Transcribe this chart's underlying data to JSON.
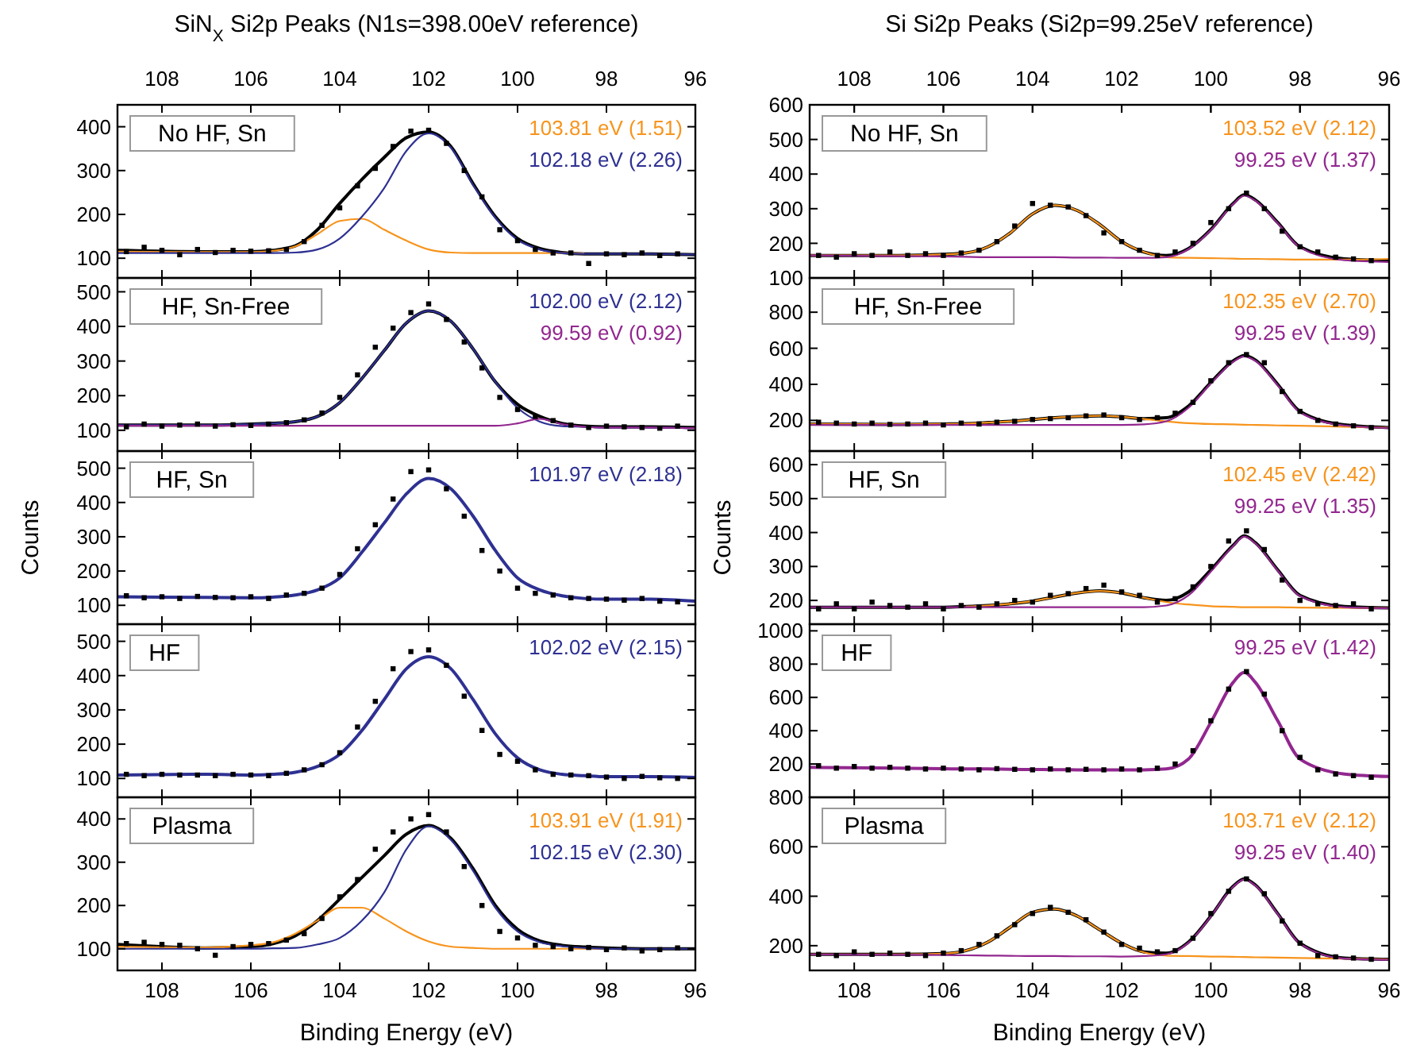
{
  "chart_data": [
    {
      "type": "line",
      "title": "SiN$_{X}$ Si2p Peaks (N1s=398.00eV reference)",
      "x": [
        109,
        107,
        106,
        105.5,
        105,
        104.5,
        104,
        103.5,
        103,
        102.5,
        102,
        101.5,
        101,
        100.5,
        100,
        99.5,
        99,
        98.5,
        98,
        97,
        96
      ],
      "xlim": [
        109,
        96
      ],
      "xticks": [
        108,
        106,
        104,
        102,
        100,
        98,
        96
      ],
      "x2lim": [
        109,
        96
      ],
      "x2ticks": [
        108,
        106,
        104,
        102,
        100,
        98,
        96
      ],
      "ylim": [
        55,
        450
      ],
      "yticks": [
        100,
        200,
        300,
        400
      ],
      "tick_labels": "y",
      "legend": "top right",
      "annotations": [
        "No HF, Sn"
      ],
      "series": [
        {
          "type": "scatter",
          "color": "#000000",
          "marker": "square",
          "x": [
            108.8,
            108.4,
            108.0,
            107.6,
            107.2,
            106.8,
            106.4,
            106.0,
            105.6,
            105.2,
            104.8,
            104.4,
            104.0,
            103.6,
            103.2,
            102.8,
            102.4,
            102.0,
            101.6,
            101.2,
            100.8,
            100.4,
            100.0,
            99.6,
            99.2,
            98.8,
            98.4,
            98.0,
            97.6,
            97.2,
            96.8,
            96.4
          ],
          "values": [
            115,
            125,
            118,
            108,
            120,
            113,
            118,
            116,
            117,
            120,
            138,
            175,
            215,
            265,
            305,
            355,
            390,
            392,
            362,
            300,
            240,
            165,
            140,
            120,
            112,
            112,
            88,
            110,
            108,
            112,
            106,
            110
          ]
        },
        {
          "type": "line",
          "color": "#000000",
          "values": [
            118,
            115,
            115,
            118,
            128,
            165,
            225,
            280,
            330,
            375,
            388,
            355,
            270,
            195,
            145,
            122,
            113,
            110,
            110,
            110,
            108
          ]
        },
        {
          "type": "line",
          "name": "103.81 eV (1.51)",
          "color": "#f7941d",
          "values": [
            115,
            114,
            114,
            117,
            127,
            155,
            185,
            190,
            165,
            140,
            120,
            113,
            112,
            112,
            112,
            112,
            112,
            111,
            null,
            null,
            null
          ]
        },
        {
          "type": "line",
          "name": "102.18 eV (2.26)",
          "color": "#2e3192",
          "values": [
            112,
            112,
            112,
            112,
            113,
            120,
            145,
            195,
            260,
            345,
            385,
            352,
            267,
            192,
            142,
            120,
            112,
            110,
            110,
            110,
            108
          ]
        }
      ]
    },
    {
      "type": "line",
      "x": [
        109,
        107,
        106,
        105.5,
        105,
        104.5,
        104,
        103.5,
        103,
        102.5,
        102,
        101.5,
        101,
        100.5,
        100,
        99.5,
        99,
        98.5,
        98,
        97,
        96
      ],
      "xlim": [
        109,
        96
      ],
      "xticks": [
        108,
        106,
        104,
        102,
        100,
        98,
        96
      ],
      "ylim": [
        40,
        540
      ],
      "yticks": [
        100,
        200,
        300,
        400,
        500
      ],
      "tick_labels": "y",
      "legend": "top right",
      "annotations": [
        "HF, Sn-Free"
      ],
      "series": [
        {
          "type": "scatter",
          "color": "#000000",
          "marker": "square",
          "x": [
            108.8,
            108.4,
            108.0,
            107.6,
            107.2,
            106.8,
            106.4,
            106.0,
            105.6,
            105.2,
            104.8,
            104.4,
            104.0,
            103.6,
            103.2,
            102.8,
            102.4,
            102.0,
            101.6,
            101.2,
            100.8,
            100.4,
            100.0,
            99.6,
            99.2,
            98.8,
            98.4,
            98.0,
            97.6,
            97.2,
            96.8,
            96.4
          ],
          "values": [
            110,
            118,
            112,
            115,
            118,
            112,
            116,
            114,
            118,
            122,
            130,
            150,
            195,
            260,
            340,
            395,
            440,
            465,
            420,
            355,
            280,
            195,
            160,
            140,
            128,
            115,
            108,
            112,
            110,
            108,
            106,
            112
          ]
        },
        {
          "type": "line",
          "color": "#000000",
          "values": [
            115,
            115,
            118,
            120,
            125,
            140,
            180,
            250,
            330,
            410,
            445,
            415,
            335,
            240,
            175,
            140,
            120,
            112,
            110,
            110,
            108
          ]
        },
        {
          "type": "line",
          "name": "102.00 eV (2.12)",
          "color": "#2e3192",
          "values": [
            115,
            115,
            118,
            120,
            125,
            140,
            180,
            250,
            330,
            410,
            445,
            415,
            335,
            240,
            165,
            125,
            112,
            110,
            108,
            108,
            106
          ]
        },
        {
          "type": "line",
          "name": "99.59 eV (0.92)",
          "color": "#92278f",
          "values": [
            113,
            113,
            113,
            113,
            113,
            113,
            113,
            113,
            113,
            113,
            113,
            113,
            113,
            113,
            120,
            133,
            118,
            110,
            108,
            108,
            106
          ]
        }
      ]
    },
    {
      "type": "line",
      "ylabel": "Counts",
      "x": [
        109,
        107,
        106,
        105.5,
        105,
        104.5,
        104,
        103.5,
        103,
        102.5,
        102,
        101.5,
        101,
        100.5,
        100,
        99.5,
        99,
        98.5,
        98,
        97,
        96
      ],
      "xlim": [
        109,
        96
      ],
      "xticks": [
        108,
        106,
        104,
        102,
        100,
        98,
        96
      ],
      "ylim": [
        45,
        550
      ],
      "yticks": [
        100,
        200,
        300,
        400,
        500
      ],
      "tick_labels": "y",
      "legend": "top right",
      "annotations": [
        "HF, Sn"
      ],
      "series": [
        {
          "type": "scatter",
          "color": "#000000",
          "marker": "square",
          "x": [
            108.8,
            108.4,
            108.0,
            107.6,
            107.2,
            106.8,
            106.4,
            106.0,
            105.6,
            105.2,
            104.8,
            104.4,
            104.0,
            103.6,
            103.2,
            102.8,
            102.4,
            102.0,
            101.6,
            101.2,
            100.8,
            100.4,
            100.0,
            99.6,
            99.2,
            98.8,
            98.4,
            98.0,
            97.6,
            97.2,
            96.8,
            96.4
          ],
          "values": [
            128,
            122,
            125,
            120,
            126,
            123,
            122,
            125,
            120,
            130,
            135,
            150,
            190,
            265,
            335,
            410,
            490,
            495,
            440,
            360,
            260,
            200,
            150,
            135,
            130,
            122,
            120,
            118,
            115,
            120,
            112,
            110
          ]
        },
        {
          "type": "line",
          "name": "101.97 eV (2.18)",
          "color": "#2e3192",
          "values": [
            125,
            123,
            122,
            124,
            130,
            145,
            180,
            255,
            340,
            425,
            470,
            440,
            360,
            260,
            180,
            145,
            128,
            120,
            118,
            118,
            112
          ]
        }
      ]
    },
    {
      "type": "line",
      "x": [
        109,
        107,
        106,
        105.5,
        105,
        104.5,
        104,
        103.5,
        103,
        102.5,
        102,
        101.5,
        101,
        100.5,
        100,
        99.5,
        99,
        98.5,
        98,
        97,
        96
      ],
      "xlim": [
        109,
        96
      ],
      "xticks": [
        108,
        106,
        104,
        102,
        100,
        98,
        96
      ],
      "ylim": [
        45,
        550
      ],
      "yticks": [
        100,
        200,
        300,
        400,
        500
      ],
      "tick_labels": "y",
      "legend": "top right",
      "annotations": [
        "HF"
      ],
      "series": [
        {
          "type": "scatter",
          "color": "#000000",
          "marker": "square",
          "x": [
            108.8,
            108.4,
            108.0,
            107.6,
            107.2,
            106.8,
            106.4,
            106.0,
            105.6,
            105.2,
            104.8,
            104.4,
            104.0,
            103.6,
            103.2,
            102.8,
            102.4,
            102.0,
            101.6,
            101.2,
            100.8,
            100.4,
            100.0,
            99.6,
            99.2,
            98.8,
            98.4,
            98.0,
            97.6,
            97.2,
            96.8,
            96.4
          ],
          "values": [
            112,
            108,
            112,
            110,
            110,
            108,
            112,
            110,
            108,
            115,
            125,
            140,
            175,
            250,
            325,
            420,
            470,
            475,
            430,
            340,
            240,
            170,
            150,
            125,
            112,
            110,
            108,
            104,
            100,
            106,
            102,
            100
          ]
        },
        {
          "type": "line",
          "name": "102.02 eV (2.15)",
          "color": "#2e3192",
          "values": [
            110,
            112,
            110,
            112,
            118,
            135,
            170,
            240,
            330,
            420,
            455,
            420,
            330,
            230,
            160,
            125,
            112,
            108,
            105,
            105,
            103
          ]
        }
      ]
    },
    {
      "type": "line",
      "xlabel": "Binding Energy (eV)",
      "x": [
        109,
        107,
        106,
        105.5,
        105,
        104.5,
        104,
        103.5,
        103,
        102.5,
        102,
        101.5,
        101,
        100.5,
        100,
        99.5,
        99,
        98.5,
        98,
        97,
        96
      ],
      "xlim": [
        109,
        96
      ],
      "xticks": [
        108,
        106,
        104,
        102,
        100,
        98,
        96
      ],
      "ylim": [
        50,
        450
      ],
      "yticks": [
        100,
        200,
        300,
        400
      ],
      "legend": "top right",
      "annotations": [
        "Plasma"
      ],
      "series": [
        {
          "type": "scatter",
          "color": "#000000",
          "marker": "square",
          "x": [
            108.8,
            108.4,
            108.0,
            107.6,
            107.2,
            106.8,
            106.4,
            106.0,
            105.6,
            105.2,
            104.8,
            104.4,
            104.0,
            103.6,
            103.2,
            102.8,
            102.4,
            102.0,
            101.6,
            101.2,
            100.8,
            100.4,
            100.0,
            99.6,
            99.2,
            98.8,
            98.4,
            98.0,
            97.6,
            97.2,
            96.8,
            96.4
          ],
          "values": [
            112,
            115,
            110,
            108,
            100,
            85,
            105,
            110,
            112,
            120,
            135,
            170,
            220,
            260,
            330,
            370,
            400,
            410,
            370,
            290,
            200,
            140,
            125,
            108,
            105,
            100,
            103,
            98,
            102,
            95,
            98,
            102
          ]
        },
        {
          "type": "line",
          "color": "#000000",
          "values": [
            110,
            102,
            105,
            112,
            130,
            165,
            215,
            265,
            315,
            365,
            385,
            355,
            285,
            200,
            145,
            118,
            108,
            104,
            102,
            100,
            100
          ]
        },
        {
          "type": "line",
          "name": "103.91 eV (1.91)",
          "color": "#f7941d",
          "values": [
            105,
            103,
            108,
            115,
            135,
            165,
            195,
            195,
            170,
            140,
            117,
            105,
            102,
            100,
            100,
            100,
            100,
            100,
            100,
            null,
            null
          ]
        },
        {
          "type": "line",
          "name": "102.15 eV (2.30)",
          "color": "#2e3192",
          "values": [
            100,
            100,
            100,
            101,
            102,
            110,
            125,
            165,
            230,
            330,
            383,
            352,
            280,
            195,
            140,
            115,
            106,
            102,
            100,
            100,
            100
          ]
        }
      ]
    },
    {
      "type": "line",
      "title": "Si Si2p Peaks (Si2p=99.25eV reference)",
      "x": [
        109,
        107,
        106,
        105.5,
        105,
        104.5,
        104,
        103.5,
        103,
        102.5,
        102,
        101.5,
        101,
        100.5,
        100,
        99.5,
        99.25,
        99,
        98.5,
        98,
        97,
        96
      ],
      "xlim": [
        109,
        96
      ],
      "xticks": [
        108,
        106,
        104,
        102,
        100,
        98,
        96
      ],
      "x2lim": [
        109,
        96
      ],
      "x2ticks": [
        108,
        106,
        104,
        102,
        100,
        98,
        96
      ],
      "ylim": [
        100,
        600
      ],
      "yticks": [
        100,
        200,
        300,
        400,
        500,
        600
      ],
      "tick_labels": "y",
      "legend": "top right",
      "annotations": [
        "No HF, Sn"
      ],
      "series": [
        {
          "type": "scatter",
          "color": "#000000",
          "marker": "square",
          "x": [
            108.8,
            108.4,
            108.0,
            107.6,
            107.2,
            106.8,
            106.4,
            106.0,
            105.6,
            105.2,
            104.8,
            104.4,
            104.0,
            103.6,
            103.2,
            102.8,
            102.4,
            102.0,
            101.6,
            101.2,
            100.8,
            100.4,
            100.0,
            99.6,
            99.2,
            98.8,
            98.4,
            98.0,
            97.6,
            97.2,
            96.8,
            96.4
          ],
          "values": [
            165,
            160,
            170,
            165,
            175,
            165,
            170,
            165,
            172,
            180,
            205,
            250,
            315,
            310,
            305,
            280,
            230,
            205,
            180,
            165,
            175,
            200,
            260,
            300,
            345,
            300,
            235,
            190,
            175,
            160,
            155,
            150
          ]
        },
        {
          "type": "line",
          "color": "#000000",
          "values": [
            165,
            165,
            168,
            172,
            190,
            230,
            285,
            310,
            295,
            255,
            205,
            175,
            165,
            185,
            240,
            315,
            340,
            325,
            260,
            190,
            155,
            150
          ]
        },
        {
          "type": "line",
          "name": "103.52 eV (2.12)",
          "color": "#f7941d",
          "values": [
            165,
            165,
            168,
            172,
            190,
            230,
            285,
            310,
            295,
            255,
            205,
            175,
            160,
            158,
            157,
            156,
            155,
            155,
            154,
            153,
            153,
            155
          ]
        },
        {
          "type": "line",
          "name": "99.25 eV (1.37)",
          "color": "#92278f",
          "values": [
            165,
            163,
            162,
            161,
            160,
            160,
            160,
            160,
            159,
            159,
            158,
            158,
            160,
            183,
            238,
            313,
            338,
            323,
            258,
            188,
            151,
            146
          ]
        }
      ]
    },
    {
      "type": "line",
      "x": [
        109,
        107,
        106,
        105.5,
        105,
        104.5,
        104,
        103.5,
        103,
        102.5,
        102,
        101.5,
        101,
        100.5,
        100,
        99.5,
        99.25,
        99,
        98.5,
        98,
        97,
        96
      ],
      "xlim": [
        109,
        96
      ],
      "xticks": [
        108,
        106,
        104,
        102,
        100,
        98,
        96
      ],
      "ylim": [
        30,
        990
      ],
      "yticks": [
        200,
        400,
        600,
        800
      ],
      "tick_labels": "y",
      "legend": "top right",
      "annotations": [
        "HF, Sn-Free"
      ],
      "series": [
        {
          "type": "scatter",
          "color": "#000000",
          "marker": "square",
          "x": [
            108.8,
            108.4,
            108.0,
            107.6,
            107.2,
            106.8,
            106.4,
            106.0,
            105.6,
            105.2,
            104.8,
            104.4,
            104.0,
            103.6,
            103.2,
            102.8,
            102.4,
            102.0,
            101.6,
            101.2,
            100.8,
            100.4,
            100.0,
            99.6,
            99.2,
            98.8,
            98.4,
            98.0,
            97.6,
            97.2,
            96.8,
            96.4
          ],
          "values": [
            190,
            185,
            180,
            185,
            178,
            180,
            185,
            175,
            185,
            180,
            190,
            195,
            205,
            210,
            215,
            225,
            230,
            215,
            205,
            215,
            240,
            300,
            420,
            520,
            565,
            520,
            360,
            250,
            200,
            180,
            170,
            160
          ]
        },
        {
          "type": "line",
          "color": "#000000",
          "values": [
            180,
            178,
            180,
            182,
            188,
            195,
            205,
            215,
            222,
            225,
            220,
            210,
            215,
            280,
            410,
            530,
            560,
            535,
            400,
            250,
            175,
            160
          ]
        },
        {
          "type": "line",
          "name": "102.35 eV (2.70)",
          "color": "#f7941d",
          "values": [
            180,
            178,
            180,
            182,
            188,
            195,
            205,
            215,
            222,
            225,
            220,
            208,
            195,
            185,
            180,
            178,
            176,
            175,
            172,
            170,
            165,
            160
          ]
        },
        {
          "type": "line",
          "name": "99.25 eV (1.39)",
          "color": "#92278f",
          "values": [
            175,
            175,
            175,
            175,
            175,
            175,
            175,
            175,
            175,
            175,
            175,
            178,
            195,
            270,
            405,
            525,
            555,
            530,
            395,
            245,
            172,
            158
          ]
        }
      ]
    },
    {
      "type": "line",
      "ylabel": "Counts",
      "x": [
        109,
        107,
        106,
        105.5,
        105,
        104.5,
        104,
        103.5,
        103,
        102.5,
        102,
        101.5,
        101,
        100.5,
        100,
        99.5,
        99.25,
        99,
        98.5,
        98,
        97,
        96
      ],
      "xlim": [
        109,
        96
      ],
      "xticks": [
        108,
        106,
        104,
        102,
        100,
        98,
        96
      ],
      "ylim": [
        130,
        640
      ],
      "yticks": [
        200,
        300,
        400,
        500,
        600
      ],
      "tick_labels": "y",
      "legend": "top right",
      "annotations": [
        "HF, Sn"
      ],
      "series": [
        {
          "type": "scatter",
          "color": "#000000",
          "marker": "square",
          "x": [
            108.8,
            108.4,
            108.0,
            107.6,
            107.2,
            106.8,
            106.4,
            106.0,
            105.6,
            105.2,
            104.8,
            104.4,
            104.0,
            103.6,
            103.2,
            102.8,
            102.4,
            102.0,
            101.6,
            101.2,
            100.8,
            100.4,
            100.0,
            99.6,
            99.2,
            98.8,
            98.4,
            98.0,
            97.6,
            97.2,
            96.8,
            96.4
          ],
          "values": [
            175,
            190,
            175,
            195,
            185,
            180,
            190,
            175,
            185,
            180,
            190,
            200,
            195,
            215,
            220,
            235,
            245,
            225,
            215,
            195,
            205,
            240,
            300,
            375,
            405,
            350,
            260,
            200,
            190,
            185,
            190,
            175
          ]
        },
        {
          "type": "line",
          "color": "#000000",
          "values": [
            180,
            180,
            180,
            182,
            185,
            190,
            198,
            210,
            222,
            228,
            222,
            208,
            200,
            225,
            290,
            362,
            390,
            370,
            290,
            215,
            182,
            178
          ]
        },
        {
          "type": "line",
          "name": "102.45 eV (2.42)",
          "color": "#f7941d",
          "values": [
            null,
            null,
            null,
            182,
            185,
            190,
            198,
            210,
            222,
            228,
            222,
            208,
            195,
            188,
            183,
            181,
            180,
            180,
            180,
            179,
            178,
            177
          ]
        },
        {
          "type": "line",
          "name": "99.25 eV (1.35)",
          "color": "#92278f",
          "values": [
            180,
            180,
            180,
            180,
            180,
            180,
            180,
            180,
            180,
            180,
            180,
            180,
            185,
            215,
            285,
            360,
            388,
            368,
            288,
            213,
            180,
            177
          ]
        }
      ]
    },
    {
      "type": "line",
      "x": [
        109,
        107,
        106,
        105.5,
        105,
        104.5,
        104,
        103.5,
        103,
        102.5,
        102,
        101.5,
        101,
        100.5,
        100,
        99.5,
        99.25,
        99,
        98.5,
        98,
        97,
        96
      ],
      "xlim": [
        109,
        96
      ],
      "xticks": [
        108,
        106,
        104,
        102,
        100,
        98,
        96
      ],
      "ylim": [
        0,
        1040
      ],
      "yticks": [
        200,
        400,
        600,
        800,
        1000
      ],
      "tick_labels": "y",
      "legend": "top right",
      "annotations": [
        "HF"
      ],
      "series": [
        {
          "type": "scatter",
          "color": "#000000",
          "marker": "square",
          "x": [
            108.8,
            108.4,
            108.0,
            107.6,
            107.2,
            106.8,
            106.4,
            106.0,
            105.6,
            105.2,
            104.8,
            104.4,
            104.0,
            103.6,
            103.2,
            102.8,
            102.4,
            102.0,
            101.6,
            101.2,
            100.8,
            100.4,
            100.0,
            99.6,
            99.2,
            98.8,
            98.4,
            98.0,
            97.6,
            97.2,
            96.8,
            96.4
          ],
          "values": [
            190,
            175,
            185,
            175,
            180,
            175,
            170,
            175,
            170,
            165,
            172,
            168,
            165,
            170,
            165,
            168,
            165,
            170,
            165,
            175,
            200,
            280,
            460,
            650,
            755,
            620,
            400,
            240,
            165,
            140,
            130,
            120
          ]
        },
        {
          "type": "line",
          "name": "99.25 eV (1.42)",
          "color": "#92278f",
          "values": [
            180,
            175,
            172,
            170,
            170,
            168,
            167,
            166,
            165,
            165,
            165,
            165,
            170,
            230,
            450,
            690,
            750,
            690,
            460,
            230,
            140,
            125
          ]
        }
      ]
    },
    {
      "type": "line",
      "xlabel": "Binding Energy (eV)",
      "x": [
        109,
        107,
        106,
        105.5,
        105,
        104.5,
        104,
        103.5,
        103,
        102.5,
        102,
        101.5,
        101,
        100.5,
        100,
        99.5,
        99.25,
        99,
        98.5,
        98,
        97,
        96
      ],
      "xlim": [
        109,
        96
      ],
      "xticks": [
        108,
        106,
        104,
        102,
        100,
        98,
        96
      ],
      "ylim": [
        100,
        800
      ],
      "yticks": [
        200,
        400,
        600,
        800
      ],
      "legend": "top right",
      "annotations": [
        "Plasma"
      ],
      "series": [
        {
          "type": "scatter",
          "color": "#000000",
          "marker": "square",
          "x": [
            108.8,
            108.4,
            108.0,
            107.6,
            107.2,
            106.8,
            106.4,
            106.0,
            105.6,
            105.2,
            104.8,
            104.4,
            104.0,
            103.6,
            103.2,
            102.8,
            102.4,
            102.0,
            101.6,
            101.2,
            100.8,
            100.4,
            100.0,
            99.6,
            99.2,
            98.8,
            98.4,
            98.0,
            97.6,
            97.2,
            96.8,
            96.4
          ],
          "values": [
            165,
            160,
            175,
            165,
            170,
            165,
            160,
            170,
            180,
            205,
            240,
            285,
            330,
            355,
            335,
            305,
            255,
            205,
            190,
            175,
            180,
            230,
            330,
            420,
            470,
            410,
            300,
            210,
            160,
            155,
            150,
            145
          ]
        },
        {
          "type": "line",
          "color": "#000000",
          "values": [
            165,
            165,
            168,
            180,
            215,
            275,
            335,
            348,
            320,
            265,
            210,
            175,
            170,
            215,
            320,
            440,
            470,
            445,
            330,
            210,
            150,
            145
          ]
        },
        {
          "type": "line",
          "name": "103.71 eV (2.12)",
          "color": "#f7941d",
          "values": [
            165,
            165,
            168,
            180,
            215,
            275,
            335,
            348,
            320,
            265,
            210,
            173,
            160,
            158,
            156,
            155,
            154,
            153,
            152,
            150,
            148,
            145
          ]
        },
        {
          "type": "line",
          "name": "99.25 eV (1.40)",
          "color": "#92278f",
          "values": [
            165,
            163,
            162,
            161,
            160,
            159,
            158,
            158,
            157,
            157,
            156,
            158,
            165,
            212,
            318,
            438,
            468,
            443,
            328,
            208,
            148,
            143
          ]
        }
      ]
    }
  ]
}
